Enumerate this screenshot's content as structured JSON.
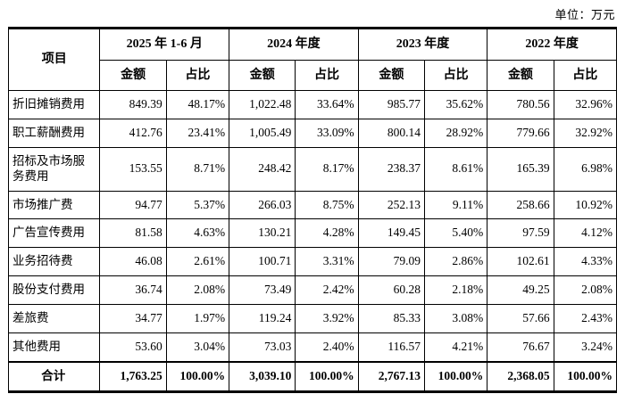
{
  "unit_label": "单位：万元",
  "table": {
    "item_header": "项目",
    "period_headers": [
      "2025 年 1-6 月",
      "2024 年度",
      "2023 年度",
      "2022 年度"
    ],
    "sub_headers": [
      "金额",
      "占比"
    ],
    "rows": [
      {
        "item": "折旧摊销费用",
        "values": [
          "849.39",
          "48.17%",
          "1,022.48",
          "33.64%",
          "985.77",
          "35.62%",
          "780.56",
          "32.96%"
        ]
      },
      {
        "item": "职工薪酬费用",
        "values": [
          "412.76",
          "23.41%",
          "1,005.49",
          "33.09%",
          "800.14",
          "28.92%",
          "779.66",
          "32.92%"
        ]
      },
      {
        "item": "招标及市场服务费用",
        "values": [
          "153.55",
          "8.71%",
          "248.42",
          "8.17%",
          "238.37",
          "8.61%",
          "165.39",
          "6.98%"
        ]
      },
      {
        "item": "市场推广费",
        "values": [
          "94.77",
          "5.37%",
          "266.03",
          "8.75%",
          "252.13",
          "9.11%",
          "258.66",
          "10.92%"
        ]
      },
      {
        "item": "广告宣传费用",
        "values": [
          "81.58",
          "4.63%",
          "130.21",
          "4.28%",
          "149.45",
          "5.40%",
          "97.59",
          "4.12%"
        ]
      },
      {
        "item": "业务招待费",
        "values": [
          "46.08",
          "2.61%",
          "100.71",
          "3.31%",
          "79.09",
          "2.86%",
          "102.61",
          "4.33%"
        ]
      },
      {
        "item": "股份支付费用",
        "values": [
          "36.74",
          "2.08%",
          "73.49",
          "2.42%",
          "60.28",
          "2.18%",
          "49.25",
          "2.08%"
        ]
      },
      {
        "item": "差旅费",
        "values": [
          "34.77",
          "1.97%",
          "119.24",
          "3.92%",
          "85.33",
          "3.08%",
          "57.66",
          "2.43%"
        ]
      },
      {
        "item": "其他费用",
        "values": [
          "53.60",
          "3.04%",
          "73.03",
          "2.40%",
          "116.57",
          "4.21%",
          "76.67",
          "3.24%"
        ]
      }
    ],
    "total_row": {
      "item": "合计",
      "values": [
        "1,763.25",
        "100.00%",
        "3,039.10",
        "100.00%",
        "2,767.13",
        "100.00%",
        "2,368.05",
        "100.00%"
      ]
    }
  }
}
